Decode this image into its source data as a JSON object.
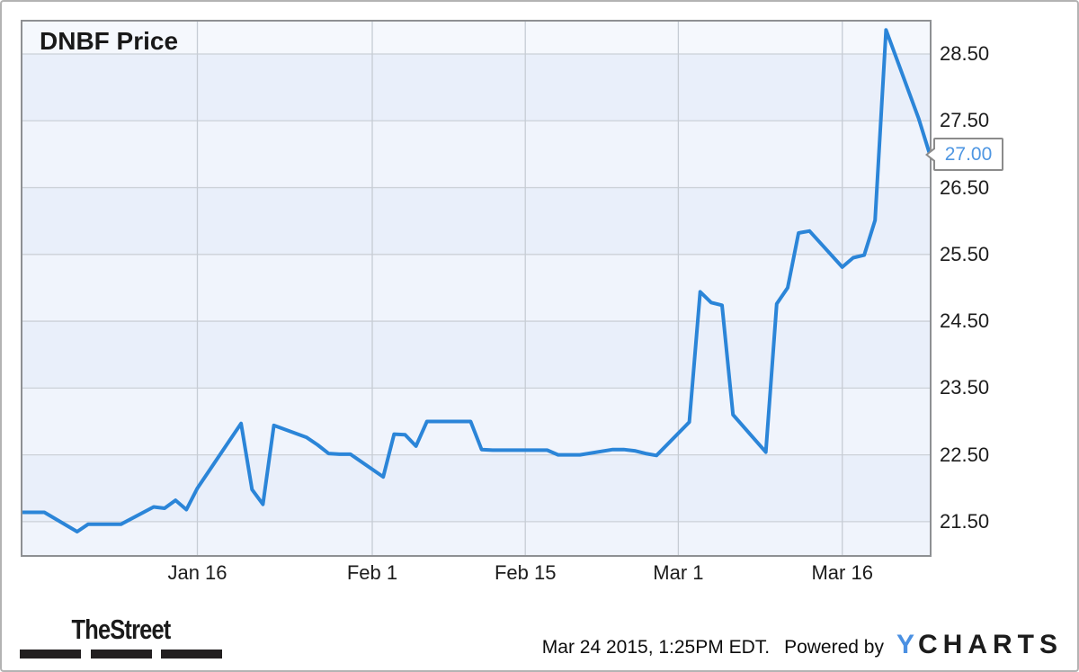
{
  "title": "DNBF Price",
  "chart_data": {
    "type": "line",
    "title": "DNBF Price",
    "series_name": "DNBF share price (USD)",
    "line_color": "#2b85d8",
    "grid": true,
    "legend_position": "none",
    "ylim": [
      21.0,
      28.985
    ],
    "xlim_day_offsets": [
      0,
      83
    ],
    "y_ticks": [
      {
        "label": "28.50",
        "value": 28.5
      },
      {
        "label": "27.50",
        "value": 27.5
      },
      {
        "label": "26.50",
        "value": 26.5
      },
      {
        "label": "25.50",
        "value": 25.5
      },
      {
        "label": "24.50",
        "value": 24.5
      },
      {
        "label": "23.50",
        "value": 23.5
      },
      {
        "label": "22.50",
        "value": 22.5
      },
      {
        "label": "21.50",
        "value": 21.5
      }
    ],
    "x_ticks": [
      {
        "label": "Jan 16",
        "day_offset": 16
      },
      {
        "label": "Feb 1",
        "day_offset": 32
      },
      {
        "label": "Feb 15",
        "day_offset": 46
      },
      {
        "label": "Mar 1",
        "day_offset": 60
      },
      {
        "label": "Mar 16",
        "day_offset": 75
      }
    ],
    "band_colors": [
      "#f5f8fd",
      "#e9effa",
      "#f0f4fc",
      "#e9effa",
      "#f0f4fc",
      "#e9effa",
      "#f0f4fc",
      "#e9effa",
      "#f0f4fc"
    ],
    "grid_color_h": "#ccd1d8",
    "grid_color_v": "#c6ccd4",
    "dates": [
      "Dec 31",
      "Jan 2",
      "Jan 5",
      "Jan 6",
      "Jan 7",
      "Jan 8",
      "Jan 9",
      "Jan 12",
      "Jan 13",
      "Jan 14",
      "Jan 15",
      "Jan 16",
      "Jan 20",
      "Jan 21",
      "Jan 22",
      "Jan 23",
      "Jan 26",
      "Jan 27",
      "Jan 28",
      "Jan 29",
      "Jan 30",
      "Feb 2",
      "Feb 3",
      "Feb 4",
      "Feb 5",
      "Feb 6",
      "Feb 9",
      "Feb 10",
      "Feb 11",
      "Feb 12",
      "Feb 13",
      "Feb 17",
      "Feb 18",
      "Feb 19",
      "Feb 20",
      "Feb 23",
      "Feb 24",
      "Feb 25",
      "Feb 26",
      "Feb 27",
      "Mar 2",
      "Mar 3",
      "Mar 4",
      "Mar 5",
      "Mar 6",
      "Mar 9",
      "Mar 10",
      "Mar 11",
      "Mar 12",
      "Mar 13",
      "Mar 16",
      "Mar 17",
      "Mar 18",
      "Mar 19",
      "Mar 20",
      "Mar 23",
      "Mar 24"
    ],
    "day_offsets": [
      0,
      2,
      5,
      6,
      7,
      8,
      9,
      12,
      13,
      14,
      15,
      16,
      20,
      21,
      22,
      23,
      26,
      27,
      28,
      29,
      30,
      33,
      34,
      35,
      36,
      37,
      40,
      41,
      42,
      43,
      44,
      48,
      49,
      50,
      51,
      54,
      55,
      56,
      57,
      58,
      61,
      62,
      63,
      64,
      65,
      68,
      69,
      70,
      71,
      72,
      75,
      76,
      77,
      78,
      79,
      82,
      83
    ],
    "prices": [
      21.64,
      21.64,
      21.35,
      21.46,
      21.46,
      21.46,
      21.46,
      21.72,
      21.7,
      21.82,
      21.68,
      22.0,
      22.97,
      21.98,
      21.76,
      22.94,
      22.76,
      22.65,
      22.52,
      22.51,
      22.51,
      22.17,
      22.81,
      22.8,
      22.63,
      23.0,
      23.0,
      23.0,
      22.58,
      22.57,
      22.57,
      22.57,
      22.5,
      22.5,
      22.5,
      22.58,
      22.58,
      22.56,
      22.52,
      22.49,
      22.99,
      24.94,
      24.78,
      24.74,
      23.1,
      22.54,
      24.76,
      25.0,
      25.82,
      25.85,
      25.31,
      25.45,
      25.49,
      26.01,
      28.86,
      27.53,
      27.0
    ],
    "last_price": 27.0,
    "last_price_label": "27.00"
  },
  "footer": {
    "thestreet_logo_text": "TheStreet",
    "timestamp": "Mar 24 2015, 1:25PM EDT.",
    "powered_by": "Powered by",
    "ycharts_logo_y": "Y",
    "ycharts_logo_rest": "CHARTS"
  },
  "colors": {
    "line": "#2b85d8",
    "badge_text": "#4e96e2",
    "ycharts_y_blue": "#4a90e2",
    "plot_border": "#8e9093",
    "frame_border": "#b3b3b3"
  }
}
